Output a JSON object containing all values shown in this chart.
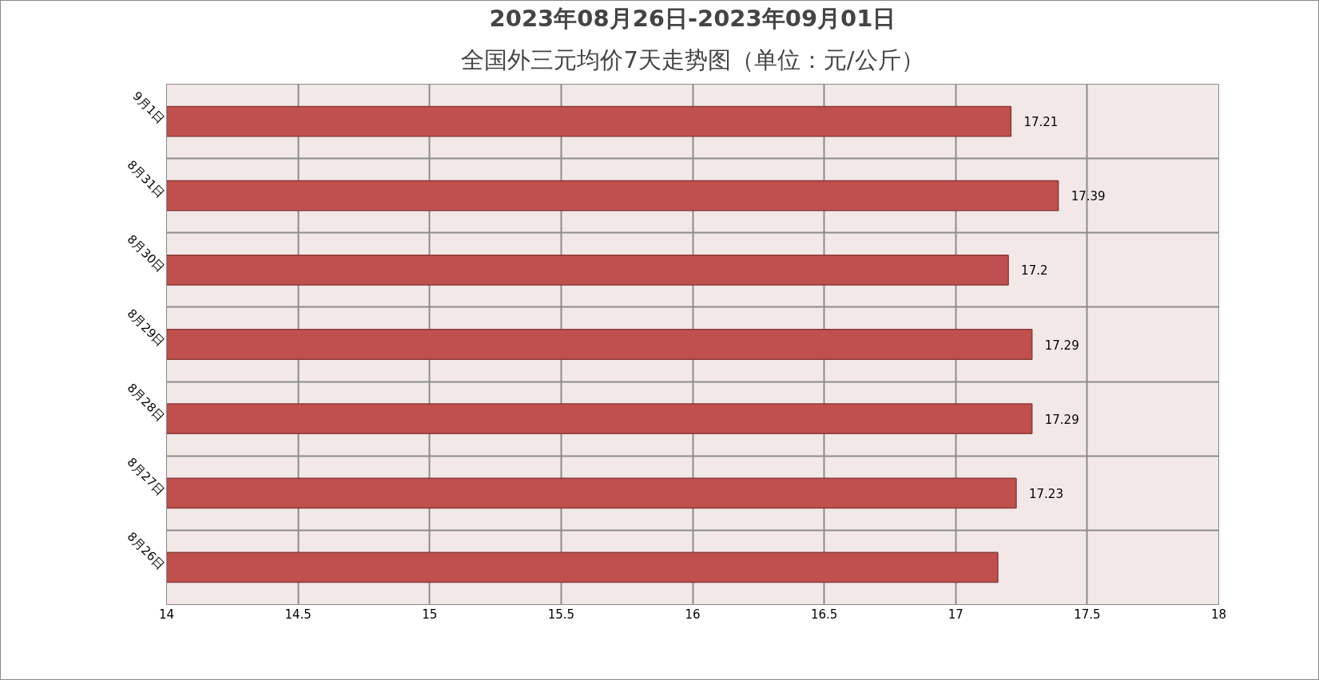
{
  "chart_data": {
    "type": "bar",
    "orientation": "horizontal",
    "title": "2023年08月26日-2023年09月01日",
    "subtitle": "全国外三元均价7天走势图（单位：元/公斤）",
    "categories": [
      "9月1日",
      "8月31日",
      "8月30日",
      "8月29日",
      "8月28日",
      "8月27日",
      "8月26日"
    ],
    "values": [
      17.21,
      17.39,
      17.2,
      17.29,
      17.29,
      17.23,
      17.16
    ],
    "value_labels": [
      "17.21",
      "17.39",
      "17.2",
      "17.29",
      "17.29",
      "17.23",
      null
    ],
    "color": "#c0504d",
    "xlim": [
      14,
      18
    ],
    "xticks": [
      14,
      14.5,
      15,
      15.5,
      16,
      16.5,
      17,
      17.5,
      18
    ],
    "grid": true
  }
}
